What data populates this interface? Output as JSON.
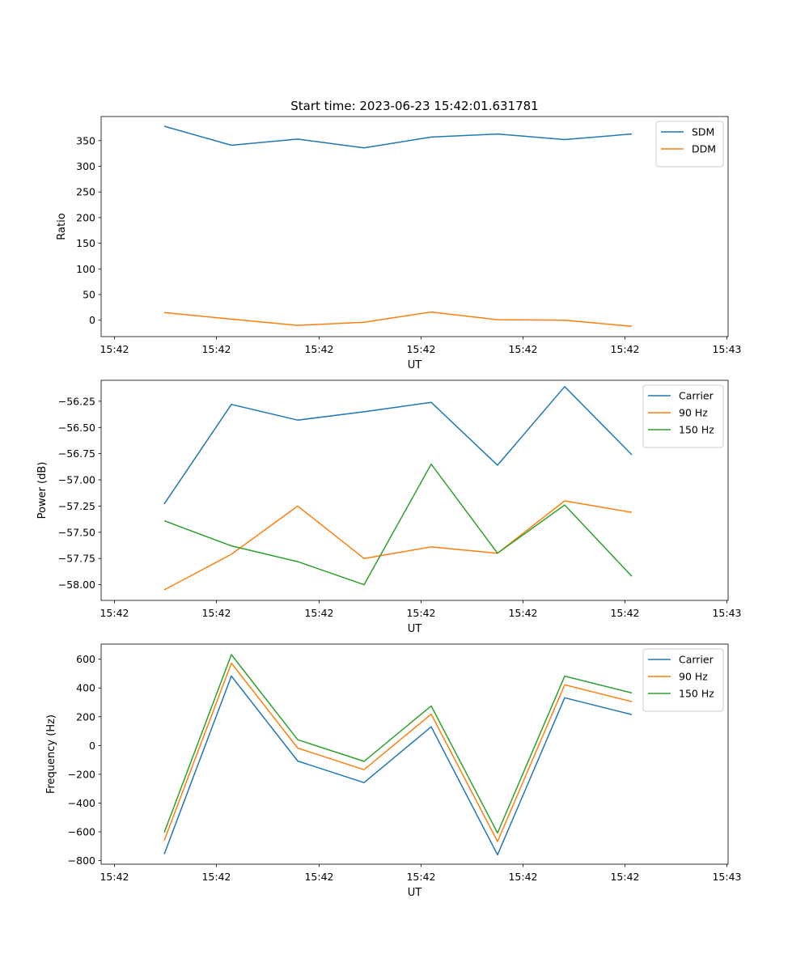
{
  "chart_data": [
    {
      "type": "line",
      "title": "Start time: 2023-06-23 15:42:01.631781",
      "xlabel": "UT",
      "ylabel": "Ratio",
      "x_tick_labels": [
        "15:42",
        "15:42",
        "15:42",
        "15:42",
        "15:42",
        "15:42",
        "15:42",
        "15:43"
      ],
      "y_ticks": [
        0,
        50,
        100,
        150,
        200,
        250,
        300,
        350
      ],
      "y_tick_labels": [
        "0",
        "50",
        "100",
        "150",
        "200",
        "250",
        "300",
        "350"
      ],
      "ylim": [
        -32,
        397
      ],
      "legend_position": "top-right",
      "series": [
        {
          "name": "SDM",
          "color": "#1f77b4",
          "values": [
            378,
            341,
            353,
            336,
            357,
            363,
            352,
            363
          ]
        },
        {
          "name": "DDM",
          "color": "#ff7f0e",
          "values": [
            15,
            2,
            -10,
            -4,
            16,
            1,
            0,
            -12
          ]
        }
      ]
    },
    {
      "type": "line",
      "title": "",
      "xlabel": "UT",
      "ylabel": "Power (dB)",
      "x_tick_labels": [
        "15:42",
        "15:42",
        "15:42",
        "15:42",
        "15:42",
        "15:42",
        "15:42",
        "15:43"
      ],
      "y_ticks": [
        -58.0,
        -57.75,
        -57.5,
        -57.25,
        -57.0,
        -56.75,
        -56.5,
        -56.25
      ],
      "y_tick_labels": [
        "−58.00",
        "−57.75",
        "−57.50",
        "−57.25",
        "−57.00",
        "−56.75",
        "−56.50",
        "−56.25"
      ],
      "ylim": [
        -58.15,
        -56.05
      ],
      "legend_position": "top-right",
      "series": [
        {
          "name": "Carrier",
          "color": "#1f77b4",
          "values": [
            -57.23,
            -56.28,
            -56.43,
            -56.35,
            -56.26,
            -56.86,
            -56.11,
            -56.76
          ]
        },
        {
          "name": "90 Hz",
          "color": "#ff7f0e",
          "values": [
            -58.05,
            -57.71,
            -57.25,
            -57.75,
            -57.64,
            -57.7,
            -57.2,
            -57.31
          ]
        },
        {
          "name": "150 Hz",
          "color": "#2ca02c",
          "values": [
            -57.39,
            -57.63,
            -57.78,
            -58.0,
            -56.85,
            -57.7,
            -57.24,
            -57.92
          ]
        }
      ]
    },
    {
      "type": "line",
      "title": "",
      "xlabel": "UT",
      "ylabel": "Frequency (Hz)",
      "x_tick_labels": [
        "15:42",
        "15:42",
        "15:42",
        "15:42",
        "15:42",
        "15:42",
        "15:42",
        "15:43"
      ],
      "y_ticks": [
        -800,
        -600,
        -400,
        -200,
        0,
        200,
        400,
        600
      ],
      "y_tick_labels": [
        "−800",
        "−600",
        "−400",
        "−200",
        "0",
        "200",
        "400",
        "600"
      ],
      "ylim": [
        -825,
        705
      ],
      "legend_position": "top-right",
      "series": [
        {
          "name": "Carrier",
          "color": "#1f77b4",
          "values": [
            -755,
            483,
            -108,
            -258,
            130,
            -760,
            332,
            215
          ]
        },
        {
          "name": "90 Hz",
          "color": "#ff7f0e",
          "values": [
            -660,
            573,
            -18,
            -168,
            218,
            -667,
            422,
            305
          ]
        },
        {
          "name": "150 Hz",
          "color": "#2ca02c",
          "values": [
            -605,
            632,
            40,
            -110,
            275,
            -608,
            482,
            365
          ]
        }
      ]
    }
  ]
}
